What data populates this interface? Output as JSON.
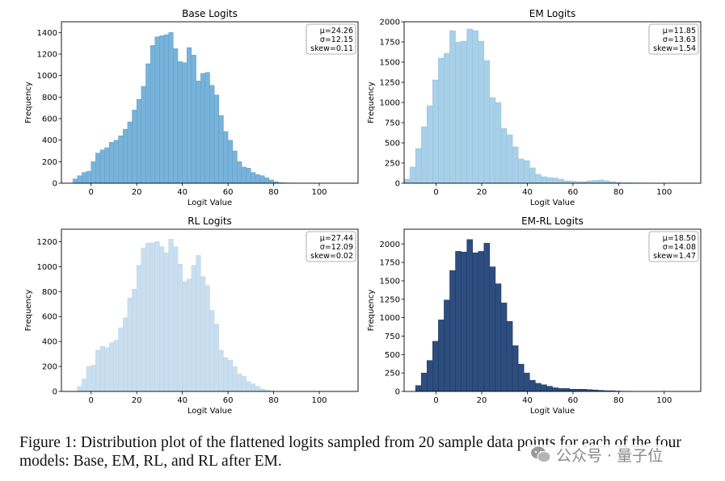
{
  "figure": {
    "caption": "Figure 1: Distribution plot of the flattened logits sampled from 20 sample data points for each of the four models: Base, EM, RL, and RL after EM.",
    "watermark": "公众号 · 量子位"
  },
  "chart_data": [
    {
      "type": "bar",
      "title": "Base Logits",
      "xlabel": "Logit Value",
      "ylabel": "Frequency",
      "xlim": [
        -13,
        117
      ],
      "ylim": [
        0,
        1500
      ],
      "xticks": [
        0,
        20,
        40,
        60,
        80,
        100
      ],
      "yticks": [
        0,
        200,
        400,
        600,
        800,
        1000,
        1200,
        1400
      ],
      "bin_width": 2,
      "bin_start": -8,
      "color": "#77b3da",
      "edge_color": "#5e9ec8",
      "stats": [
        "μ=24.26",
        "σ=12.15",
        "skew=0.11"
      ],
      "values": [
        40,
        70,
        100,
        110,
        200,
        280,
        310,
        330,
        380,
        400,
        440,
        500,
        570,
        680,
        780,
        900,
        1110,
        1280,
        1360,
        1370,
        1380,
        1400,
        1250,
        1130,
        1120,
        1260,
        1190,
        950,
        1020,
        1030,
        910,
        820,
        630,
        480,
        400,
        300,
        200,
        150,
        140,
        100,
        80,
        70,
        50,
        30,
        15,
        5,
        3,
        2
      ]
    },
    {
      "type": "bar",
      "title": "EM Logits",
      "xlabel": "Logit Value",
      "ylabel": "Frequency",
      "xlim": [
        -14,
        116
      ],
      "ylim": [
        0,
        2000
      ],
      "xticks": [
        0,
        20,
        40,
        60,
        80,
        100
      ],
      "yticks": [
        0,
        250,
        500,
        750,
        1000,
        1250,
        1500,
        1750,
        2000
      ],
      "bin_width": 2.5,
      "bin_start": -14,
      "color": "#a8d0e8",
      "edge_color": "#93c0dc",
      "stats": [
        "μ=11.85",
        "σ=13.63",
        "skew=1.54"
      ],
      "values": [
        50,
        200,
        430,
        700,
        960,
        1280,
        1550,
        1610,
        1890,
        1750,
        1760,
        1910,
        1890,
        1760,
        1520,
        1060,
        1000,
        680,
        600,
        450,
        300,
        280,
        190,
        110,
        80,
        70,
        65,
        50,
        30,
        25,
        20,
        20,
        30,
        35,
        40,
        30,
        20,
        10,
        5,
        5,
        3,
        2
      ]
    },
    {
      "type": "bar",
      "title": "RL Logits",
      "xlabel": "Logit Value",
      "ylabel": "Frequency",
      "xlim": [
        -13,
        117
      ],
      "ylim": [
        0,
        1300
      ],
      "xticks": [
        0,
        20,
        40,
        60,
        80,
        100
      ],
      "yticks": [
        0,
        200,
        400,
        600,
        800,
        1000,
        1200
      ],
      "bin_width": 2,
      "bin_start": -6,
      "color": "#c9dff0",
      "edge_color": "#b7d2e8",
      "stats": [
        "μ=27.44",
        "σ=12.09",
        "skew=0.02"
      ],
      "values": [
        40,
        100,
        200,
        210,
        330,
        360,
        350,
        390,
        410,
        510,
        590,
        750,
        820,
        1010,
        1150,
        1190,
        1190,
        1200,
        1160,
        1110,
        1220,
        1160,
        1020,
        880,
        900,
        1010,
        1090,
        920,
        850,
        650,
        540,
        330,
        270,
        250,
        200,
        140,
        120,
        80,
        60,
        40,
        20,
        10,
        5
      ]
    },
    {
      "type": "bar",
      "title": "EM-RL Logits",
      "xlabel": "Logit Value",
      "ylabel": "Frequency",
      "xlim": [
        -14,
        116
      ],
      "ylim": [
        0,
        2200
      ],
      "xticks": [
        0,
        20,
        40,
        60,
        80,
        100
      ],
      "yticks": [
        0,
        250,
        500,
        750,
        1000,
        1250,
        1500,
        1750,
        2000
      ],
      "bin_width": 2.5,
      "bin_start": -9,
      "color": "#2e4d7f",
      "edge_color": "#1a3560",
      "stats": [
        "μ=18.50",
        "σ=14.08",
        "skew=1.47"
      ],
      "values": [
        80,
        250,
        420,
        680,
        970,
        1240,
        1640,
        1900,
        1890,
        2060,
        1880,
        1900,
        2010,
        1690,
        1460,
        1200,
        950,
        620,
        370,
        250,
        150,
        110,
        90,
        70,
        50,
        40,
        40,
        30,
        30,
        30,
        25,
        20,
        15,
        10,
        10,
        5,
        3,
        2
      ]
    }
  ]
}
